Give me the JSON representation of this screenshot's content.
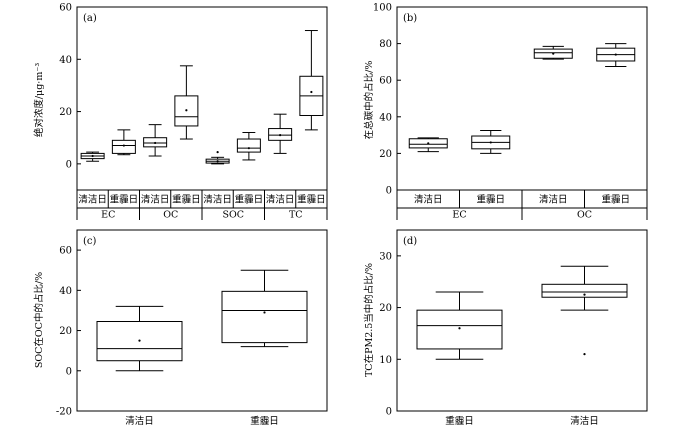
{
  "chart_data": [
    {
      "type": "box",
      "panel_label": "(a)",
      "ylabel": "绝对浓度/μg·m⁻³",
      "ylim": [
        -10,
        60
      ],
      "yticks": [
        0,
        20,
        40,
        60
      ],
      "categories": [
        "清洁日",
        "重霾日",
        "清洁日",
        "重霾日",
        "清洁日",
        "重霾日",
        "清洁日",
        "重霾日"
      ],
      "groups": [
        "EC",
        "OC",
        "SOC",
        "TC"
      ],
      "boxes": [
        {
          "whisker_low": 1.0,
          "q1": 2.0,
          "median": 3.0,
          "q3": 4.0,
          "whisker_high": 4.5,
          "mean": 3.0
        },
        {
          "whisker_low": 3.5,
          "q1": 4.0,
          "median": 7.0,
          "q3": 9.0,
          "whisker_high": 13.0,
          "mean": 7.0
        },
        {
          "whisker_low": 3.0,
          "q1": 6.5,
          "median": 8.0,
          "q3": 10.0,
          "whisker_high": 15.0,
          "mean": 8.0
        },
        {
          "whisker_low": 9.5,
          "q1": 14.5,
          "median": 18.0,
          "q3": 26.0,
          "whisker_high": 37.5,
          "mean": 20.5
        },
        {
          "whisker_low": 0.0,
          "q1": 0.3,
          "median": 1.0,
          "q3": 1.8,
          "whisker_high": 2.5,
          "mean": 1.0,
          "outliers": [
            4.5
          ]
        },
        {
          "whisker_low": 1.5,
          "q1": 4.5,
          "median": 6.0,
          "q3": 9.5,
          "whisker_high": 12.0,
          "mean": 6.0
        },
        {
          "whisker_low": 4.0,
          "q1": 9.0,
          "median": 11.0,
          "q3": 13.5,
          "whisker_high": 19.0,
          "mean": 11.0
        },
        {
          "whisker_low": 13.0,
          "q1": 18.5,
          "median": 26.0,
          "q3": 33.5,
          "whisker_high": 51.0,
          "mean": 27.5
        }
      ]
    },
    {
      "type": "box",
      "panel_label": "(b)",
      "ylabel": "在总碳中的占比/%",
      "ylim": [
        0,
        100
      ],
      "yticks": [
        0,
        20,
        40,
        60,
        80,
        100
      ],
      "categories": [
        "清洁日",
        "重霾日",
        "清洁日",
        "重霾日"
      ],
      "groups": [
        "EC",
        "OC"
      ],
      "boxes": [
        {
          "whisker_low": 21.0,
          "q1": 23.0,
          "median": 25.0,
          "q3": 28.0,
          "whisker_high": 28.5,
          "mean": 25.5
        },
        {
          "whisker_low": 20.0,
          "q1": 22.5,
          "median": 26.0,
          "q3": 29.5,
          "whisker_high": 32.5,
          "mean": 26.0
        },
        {
          "whisker_low": 71.5,
          "q1": 72.0,
          "median": 75.0,
          "q3": 77.0,
          "whisker_high": 78.5,
          "mean": 74.5
        },
        {
          "whisker_low": 67.5,
          "q1": 70.5,
          "median": 74.0,
          "q3": 77.5,
          "whisker_high": 80.0,
          "mean": 74.0
        }
      ]
    },
    {
      "type": "box",
      "panel_label": "(c)",
      "ylabel": "SOC在OC中的占比/%",
      "ylim": [
        -20,
        70
      ],
      "yticks": [
        -20,
        0,
        20,
        40,
        60
      ],
      "categories": [
        "清洁日",
        "重霾日"
      ],
      "boxes": [
        {
          "whisker_low": 0.0,
          "q1": 5.0,
          "median": 11.0,
          "q3": 24.5,
          "whisker_high": 32.0,
          "mean": 15.0
        },
        {
          "whisker_low": 12.0,
          "q1": 14.0,
          "median": 30.0,
          "q3": 39.5,
          "whisker_high": 50.0,
          "mean": 29.0
        }
      ]
    },
    {
      "type": "box",
      "panel_label": "(d)",
      "ylabel": "TC在PM2.5当中的占比/%",
      "ylim": [
        0,
        35
      ],
      "yticks": [
        0,
        10,
        20,
        30
      ],
      "categories": [
        "重霾日",
        "清洁日"
      ],
      "boxes": [
        {
          "whisker_low": 10.0,
          "q1": 12.0,
          "median": 16.5,
          "q3": 19.5,
          "whisker_high": 23.0,
          "mean": 16.0
        },
        {
          "whisker_low": 19.5,
          "q1": 22.0,
          "median": 23.0,
          "q3": 24.5,
          "whisker_high": 28.0,
          "mean": 22.5,
          "outliers": [
            11.0
          ]
        }
      ]
    }
  ]
}
